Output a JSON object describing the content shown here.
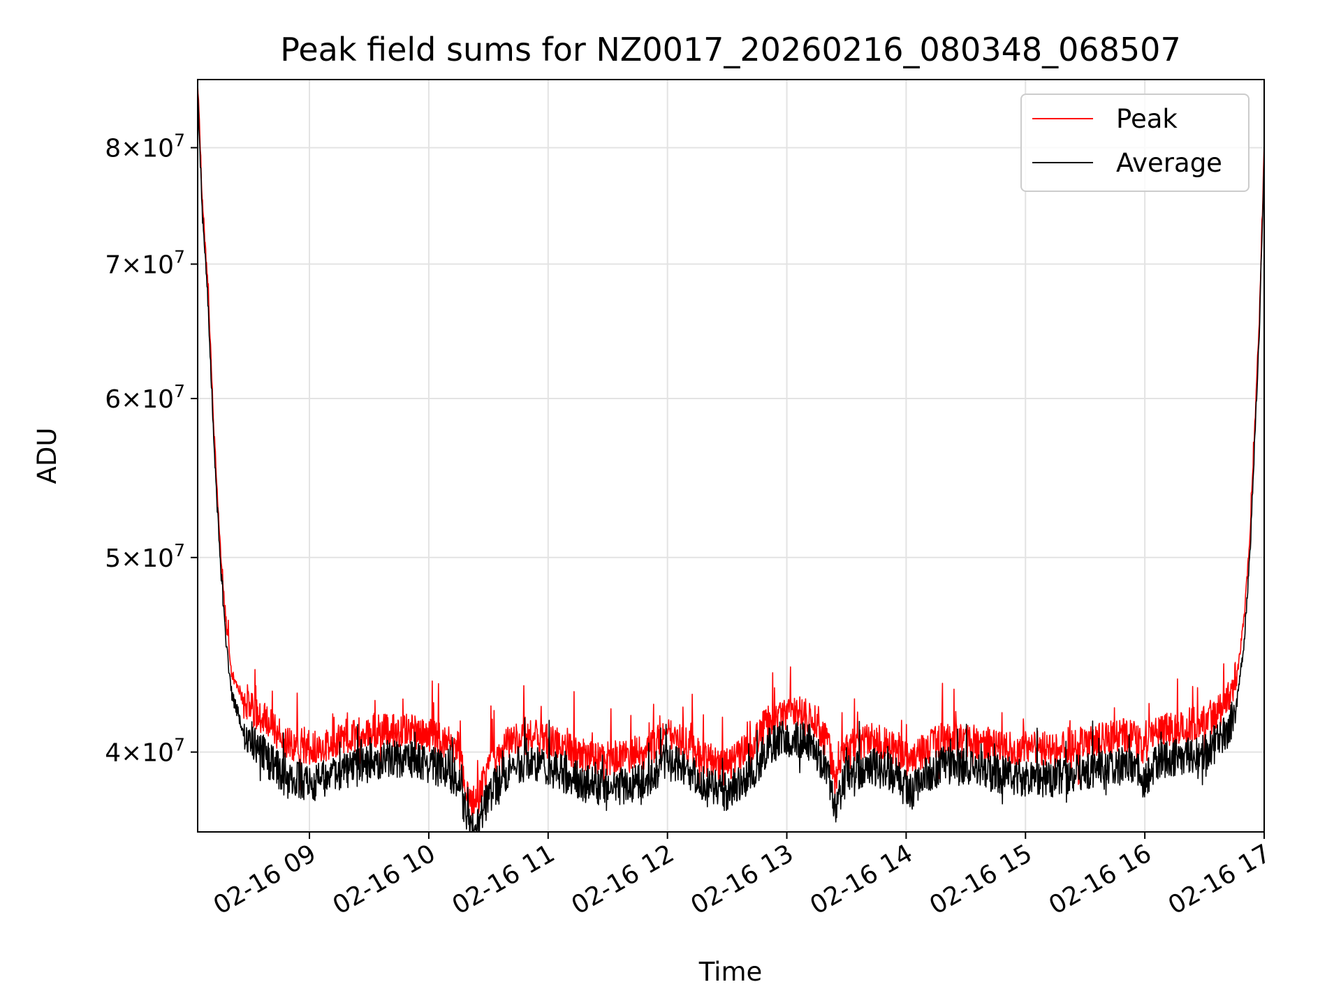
{
  "chart_data": {
    "type": "line",
    "title": "Peak field sums for NZ0017_20260216_080348_068507",
    "xlabel": "Time",
    "ylabel": "ADU",
    "y_scale": "log",
    "ylim": [
      36500000,
      86500000
    ],
    "x_range_hours": [
      8.0633,
      17.0
    ],
    "x_ticks": [
      {
        "hour": 9,
        "label": "02-16 09"
      },
      {
        "hour": 10,
        "label": "02-16 10"
      },
      {
        "hour": 11,
        "label": "02-16 11"
      },
      {
        "hour": 12,
        "label": "02-16 12"
      },
      {
        "hour": 13,
        "label": "02-16 13"
      },
      {
        "hour": 14,
        "label": "02-16 14"
      },
      {
        "hour": 15,
        "label": "02-16 15"
      },
      {
        "hour": 16,
        "label": "02-16 16"
      },
      {
        "hour": 17,
        "label": "02-16 17"
      }
    ],
    "y_ticks": [
      {
        "value": 40000000,
        "mantissa": "4",
        "exp": "7"
      },
      {
        "value": 50000000,
        "mantissa": "5",
        "exp": "7"
      },
      {
        "value": 60000000,
        "mantissa": "6",
        "exp": "7"
      },
      {
        "value": 70000000,
        "mantissa": "7",
        "exp": "7"
      },
      {
        "value": 80000000,
        "mantissa": "8",
        "exp": "7"
      }
    ],
    "grid": true,
    "legend_position": "top-right",
    "series": [
      {
        "name": "Peak",
        "color": "#ff0000",
        "noise": 0.02,
        "spike": 0.045,
        "points": [
          [
            8.0633,
            86500000
          ],
          [
            8.1,
            76000000
          ],
          [
            8.15,
            68000000
          ],
          [
            8.2,
            58000000
          ],
          [
            8.25,
            51000000
          ],
          [
            8.3,
            46500000
          ],
          [
            8.35,
            43700000
          ],
          [
            8.45,
            42400000
          ],
          [
            8.6,
            41600000
          ],
          [
            8.8,
            40500000
          ],
          [
            9.0,
            40200000
          ],
          [
            9.3,
            40600000
          ],
          [
            9.6,
            41100000
          ],
          [
            9.9,
            40900000
          ],
          [
            10.1,
            40600000
          ],
          [
            10.25,
            40200000
          ],
          [
            10.33,
            37800000
          ],
          [
            10.4,
            37700000
          ],
          [
            10.5,
            39300000
          ],
          [
            10.7,
            40600000
          ],
          [
            10.9,
            40700000
          ],
          [
            11.1,
            40300000
          ],
          [
            11.3,
            39800000
          ],
          [
            11.5,
            39700000
          ],
          [
            11.7,
            39800000
          ],
          [
            11.85,
            40100000
          ],
          [
            12.0,
            40900000
          ],
          [
            12.15,
            40500000
          ],
          [
            12.3,
            39700000
          ],
          [
            12.5,
            39400000
          ],
          [
            12.7,
            40300000
          ],
          [
            12.85,
            41500000
          ],
          [
            13.0,
            41900000
          ],
          [
            13.2,
            41700000
          ],
          [
            13.35,
            40300000
          ],
          [
            13.4,
            38600000
          ],
          [
            13.5,
            40200000
          ],
          [
            13.7,
            40600000
          ],
          [
            13.9,
            40200000
          ],
          [
            14.05,
            39400000
          ],
          [
            14.1,
            39900000
          ],
          [
            14.3,
            40600000
          ],
          [
            14.5,
            40500000
          ],
          [
            14.8,
            40300000
          ],
          [
            15.0,
            40200000
          ],
          [
            15.2,
            40200000
          ],
          [
            15.4,
            40300000
          ],
          [
            15.6,
            40600000
          ],
          [
            15.9,
            40800000
          ],
          [
            16.0,
            40200000
          ],
          [
            16.1,
            41000000
          ],
          [
            16.3,
            41200000
          ],
          [
            16.5,
            41400000
          ],
          [
            16.65,
            42000000
          ],
          [
            16.72,
            42700000
          ],
          [
            16.78,
            44000000
          ],
          [
            16.83,
            46500000
          ],
          [
            16.88,
            51000000
          ],
          [
            16.92,
            58000000
          ],
          [
            16.96,
            66000000
          ],
          [
            17.0,
            80000000
          ]
        ]
      },
      {
        "name": "Average",
        "color": "#000000",
        "noise": 0.022,
        "spike": 0.03,
        "points": [
          [
            8.0633,
            85800000
          ],
          [
            8.1,
            74500000
          ],
          [
            8.15,
            67000000
          ],
          [
            8.2,
            57000000
          ],
          [
            8.25,
            50000000
          ],
          [
            8.3,
            45500000
          ],
          [
            8.35,
            42700000
          ],
          [
            8.45,
            41000000
          ],
          [
            8.6,
            40000000
          ],
          [
            8.8,
            38800000
          ],
          [
            9.0,
            38600000
          ],
          [
            9.3,
            39100000
          ],
          [
            9.6,
            39700000
          ],
          [
            9.9,
            39600000
          ],
          [
            10.1,
            39300000
          ],
          [
            10.25,
            38800000
          ],
          [
            10.33,
            36800000
          ],
          [
            10.4,
            36600000
          ],
          [
            10.5,
            38100000
          ],
          [
            10.7,
            39400000
          ],
          [
            10.9,
            39500000
          ],
          [
            11.1,
            39100000
          ],
          [
            11.3,
            38600000
          ],
          [
            11.5,
            38400000
          ],
          [
            11.7,
            38600000
          ],
          [
            11.85,
            38900000
          ],
          [
            12.0,
            39700000
          ],
          [
            12.15,
            39300000
          ],
          [
            12.3,
            38500000
          ],
          [
            12.5,
            38200000
          ],
          [
            12.7,
            39000000
          ],
          [
            12.85,
            40300000
          ],
          [
            13.0,
            40700000
          ],
          [
            13.2,
            40400000
          ],
          [
            13.35,
            39100000
          ],
          [
            13.4,
            37300000
          ],
          [
            13.5,
            39000000
          ],
          [
            13.7,
            39400000
          ],
          [
            13.9,
            39000000
          ],
          [
            14.05,
            38200000
          ],
          [
            14.1,
            38700000
          ],
          [
            14.3,
            39400000
          ],
          [
            14.5,
            39300000
          ],
          [
            14.8,
            39000000
          ],
          [
            15.0,
            38800000
          ],
          [
            15.2,
            38800000
          ],
          [
            15.4,
            39000000
          ],
          [
            15.6,
            39300000
          ],
          [
            15.9,
            39400000
          ],
          [
            16.0,
            38700000
          ],
          [
            16.1,
            39600000
          ],
          [
            16.3,
            39800000
          ],
          [
            16.5,
            40000000
          ],
          [
            16.65,
            40600000
          ],
          [
            16.72,
            41300000
          ],
          [
            16.78,
            42700000
          ],
          [
            16.83,
            45300000
          ],
          [
            16.88,
            50000000
          ],
          [
            16.92,
            57000000
          ],
          [
            16.96,
            65000000
          ],
          [
            17.0,
            79000000
          ]
        ]
      }
    ]
  }
}
